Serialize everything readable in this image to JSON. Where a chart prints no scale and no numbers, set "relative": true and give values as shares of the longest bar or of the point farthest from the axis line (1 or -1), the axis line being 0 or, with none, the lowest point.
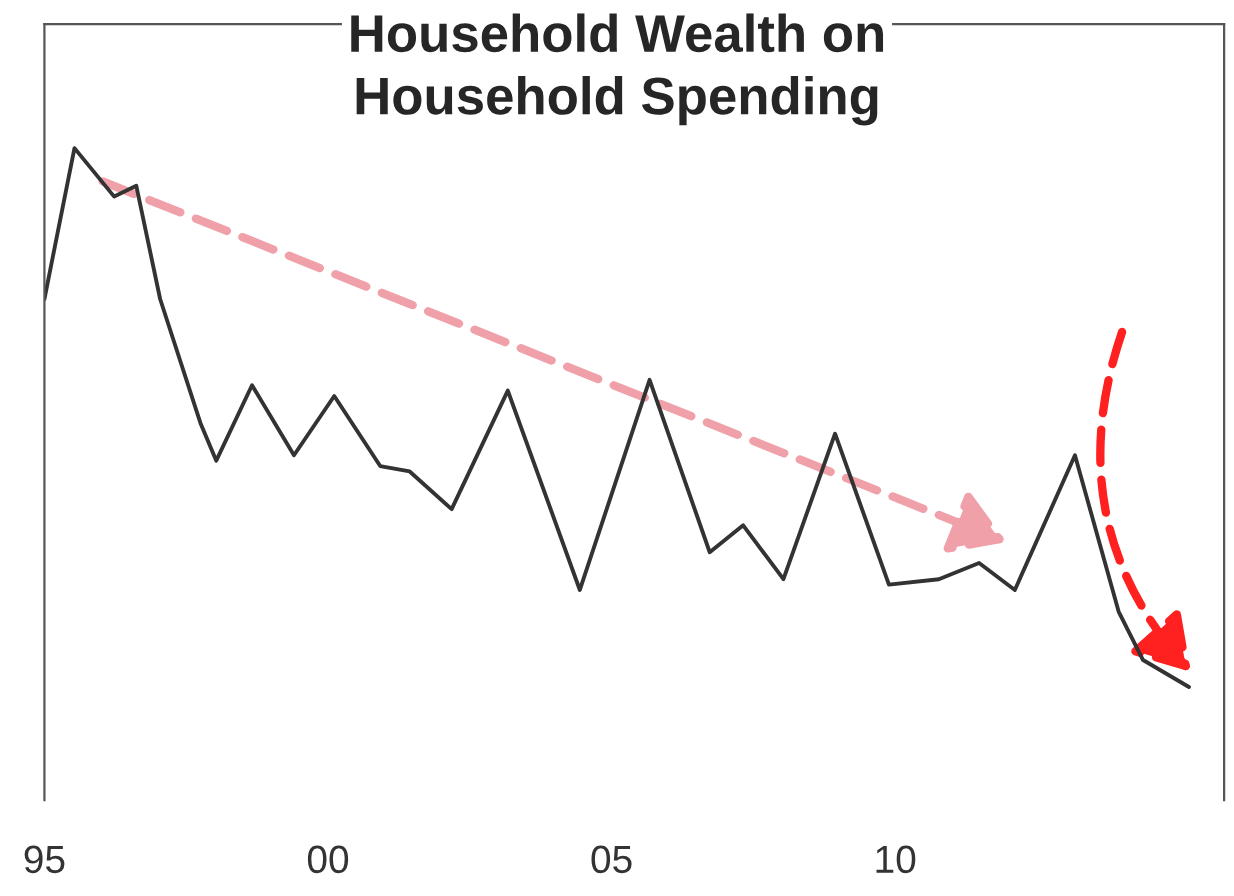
{
  "chart_data": {
    "type": "line",
    "title": "Household Wealth on\nHousehold Spending",
    "relative": true,
    "x": [
      1995.0,
      1995.53,
      1996.23,
      1996.62,
      1997.04,
      1997.75,
      1998.03,
      1998.66,
      1999.4,
      2000.11,
      2000.92,
      2001.44,
      2002.18,
      2003.17,
      2004.44,
      2005.67,
      2006.73,
      2007.32,
      2008.03,
      2008.94,
      2009.89,
      2010.77,
      2011.48,
      2012.11,
      2013.17,
      2013.94,
      2014.37,
      2015.18
    ],
    "series": [
      {
        "color": "#333333",
        "values": [
          0.72,
          1.0,
          0.91,
          0.93,
          0.72,
          0.49,
          0.42,
          0.56,
          0.43,
          0.54,
          0.41,
          0.4,
          0.33,
          0.55,
          0.18,
          0.57,
          0.25,
          0.3,
          0.2,
          0.47,
          0.19,
          0.2,
          0.23,
          0.18,
          0.43,
          0.14,
          0.05,
          0.0
        ]
      }
    ],
    "xlim": [
      1995,
      2015.8
    ],
    "xticks": [
      {
        "value": 1995,
        "label": "95"
      },
      {
        "value": 2000,
        "label": "00"
      },
      {
        "value": 2005,
        "label": "05"
      },
      {
        "value": 2010,
        "label": "10"
      }
    ],
    "grid": false,
    "legend": false,
    "marker": "none",
    "line_style": "solid"
  }
}
